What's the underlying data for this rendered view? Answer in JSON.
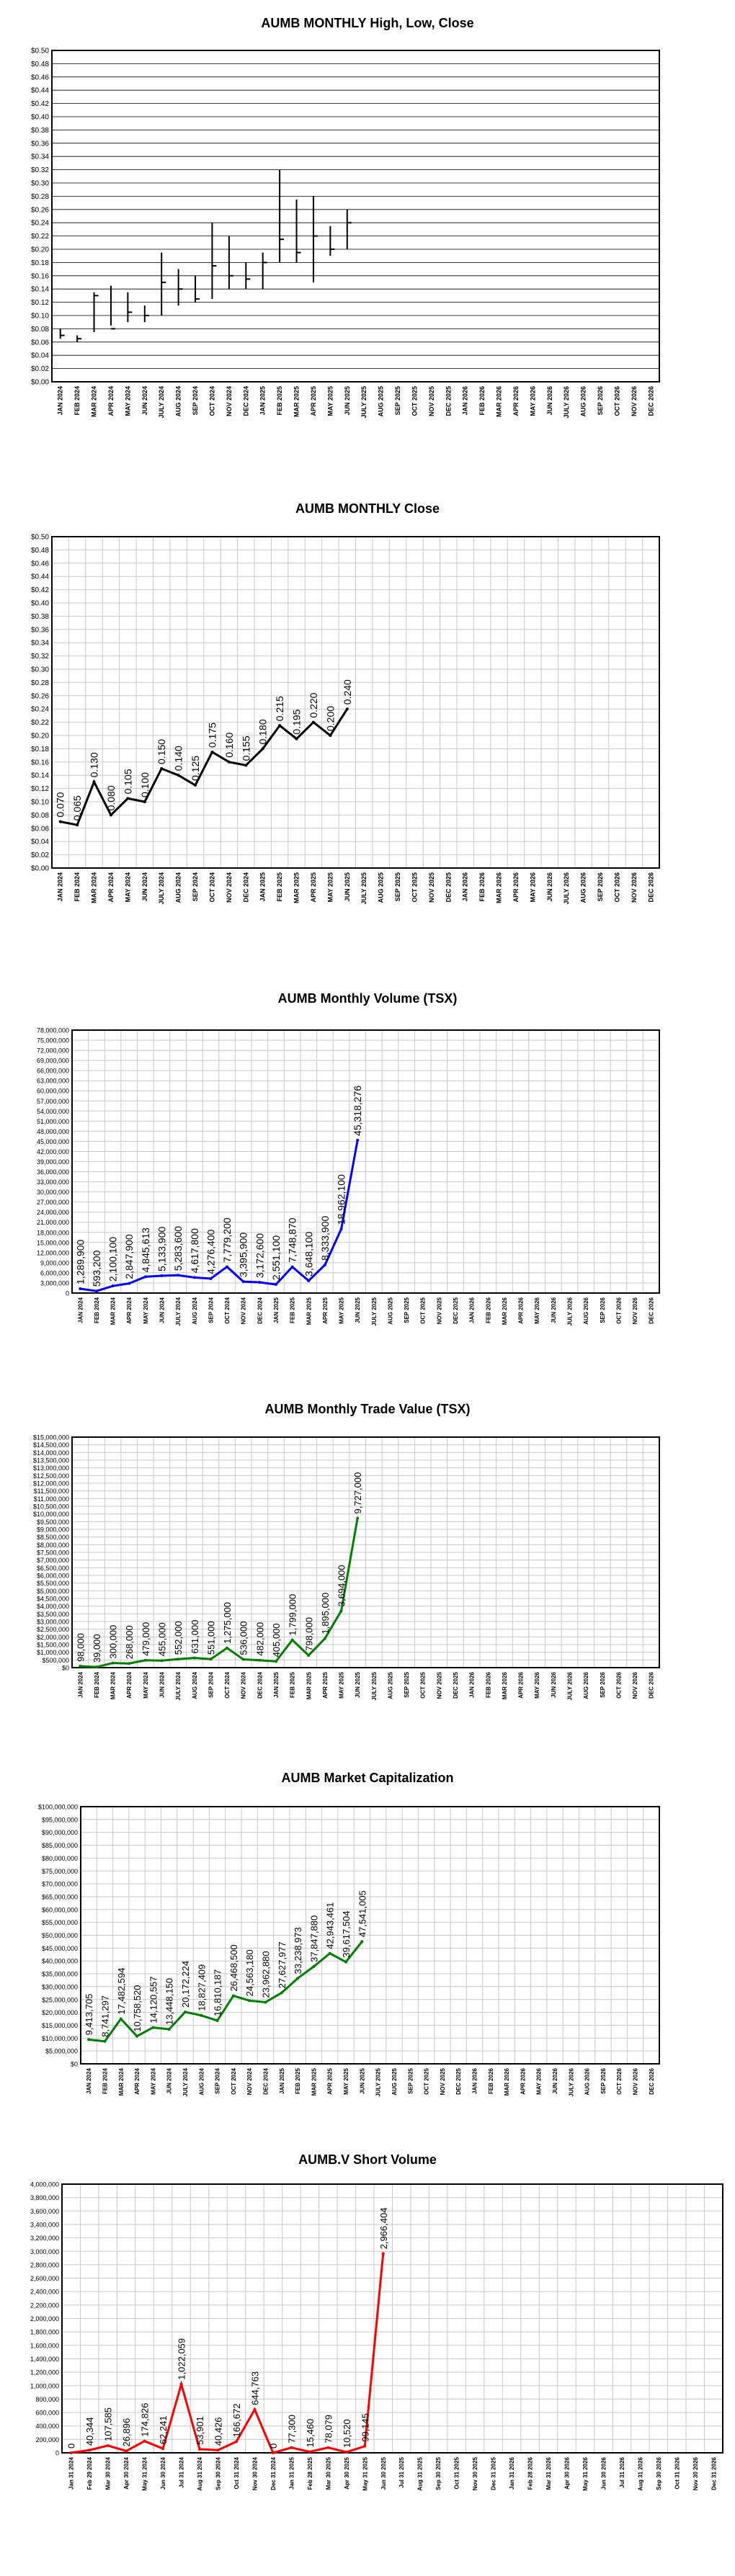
{
  "months": [
    "JAN 2024",
    "FEB 2024",
    "MAR 2024",
    "APR 2024",
    "MAY 2024",
    "JUN 2024",
    "JULY 2024",
    "AUG 2024",
    "SEP 2024",
    "OCT 2024",
    "NOV 2024",
    "DEC 2024",
    "JAN 2025",
    "FEB 2025",
    "MAR 2025",
    "APR 2025",
    "MAY 2025",
    "JUN 2025",
    "JULY 2025",
    "AUG 2025",
    "SEP 2025",
    "OCT 2025",
    "NOV 2025",
    "DEC 2025",
    "JAN 2026",
    "FEB 2026",
    "MAR 2026",
    "APR 2026",
    "MAY 2026",
    "JUN 2026",
    "JULY 2026",
    "AUG 2026",
    "SEP 2026",
    "OCT 2026",
    "NOV 2026",
    "DEC 2026"
  ],
  "months_close": [
    "JAN 2024",
    "FEB 2024",
    "MAR 2024",
    "APR 2024",
    "MAY 2024",
    "JUN 2024",
    "JULY 2024",
    "AUG 2024",
    "SEP 2024",
    "OCT 2024",
    "NOV 2024",
    "DEC 2024",
    "JAN 2025",
    "FEB 2025",
    "MAR 2025",
    "APR 2025",
    "MAY 2025",
    "JUN 2025",
    "JULY 2025",
    "AUG 2025",
    "SEP 2025",
    "OCT 2025",
    "NOV 2025",
    "DEC 2025",
    "JAN 2026",
    "FEB 2026",
    "MAR 2026",
    "APR 2026",
    "MAY 2026",
    "JUN 2026",
    "JULY 2026",
    "AUG 2026",
    "SEP 2026",
    "OCT 2026",
    "NOV 2026",
    "DEC 2026"
  ],
  "months_volume": [
    "JAN 2024",
    "FEB 2024",
    "MAR 2024",
    "APR 2024",
    "MAY 2024",
    "JUN 2024",
    "JULY 2024",
    "AUG 2024",
    "SEP 2024",
    "OCT 2024",
    "NOV 2024",
    "DEC 2024",
    "JAN 2025",
    "FEB 2025",
    "MAR 2025",
    "APR 2025",
    "MAY 2025",
    "JUN 2025",
    "JULY 2025",
    "AUG 2025",
    "SEP 2025",
    "OCT 2025",
    "NOV 2025",
    "DEC 2025",
    "JAN 2026",
    "FEB 2026",
    "MAR 2026",
    "APR 2026",
    "MAY 2026",
    "JUN 2026",
    "JULY 2026",
    "AUG 2026",
    "SEP 2026",
    "OCT 2026",
    "NOV 2026",
    "DEC 2026"
  ],
  "months_value": [
    "JAN 2024",
    "FEB 2024",
    "MAR 2024",
    "APR 2024",
    "MAY 2024",
    "JUN 2024",
    "JULY 2024",
    "AUG 2024",
    "SEP 2024",
    "OCT 2024",
    "NOV 2024",
    "DEC 2024",
    "JAN 2025",
    "FEB 2025",
    "MAR 2025",
    "APR 2025",
    "MAY 2025",
    "JUN 2025",
    "JULY 2025",
    "AUG 2025",
    "SEP 2025",
    "OCT 2025",
    "NOV 2025",
    "DEC 2025",
    "JAN 2026",
    "FEB 2026",
    "MAR 2026",
    "APR 2026",
    "MAY 2026",
    "JUN 2026",
    "JULY 2026",
    "AUG 2026",
    "SEP 2026",
    "OCT 2026",
    "NOV 2026",
    "DEC 2026"
  ],
  "months_cap": [
    "JAN 2024",
    "FEB 2024",
    "MAR 2024",
    "APR 2024",
    "MAY 2024",
    "JUN 2024",
    "JULY 2024",
    "AUG 2024",
    "SEP 2024",
    "OCT 2024",
    "NOV 2024",
    "DEC 2024",
    "JAN 2025",
    "FEB 2025",
    "MAR 2025",
    "APR 2025",
    "MAY 2025",
    "JUN 2025",
    "JULY 2025",
    "AUG 2025",
    "SEP 2025",
    "OCT 2025",
    "NOV 2025",
    "DEC 2025",
    "JAN 2026",
    "FEB 2026",
    "MAR 2026",
    "APR 2026",
    "MAY 2026",
    "JUN 2026",
    "JULY 2026",
    "AUG 2026",
    "SEP 2026",
    "OCT 2026",
    "NOV 2026",
    "DEC 2026"
  ],
  "short_dates": [
    "Jan 31 2024",
    "Feb 29 2024",
    "Mar 30 2024",
    "Apr 30 2024",
    "May 31 2024",
    "Jun 30 2024",
    "Jul 31 2024",
    "Aug 31 2024",
    "Sep 30 2024",
    "Oct 31 2024",
    "Nov 30 2024",
    "Dec 31 2024",
    "Jan 31 2025",
    "Feb 28 2025",
    "Mar 30 2025",
    "Apr 30 2025",
    "May 31 2025",
    "Jun 30 2025",
    "Jul 31 2025",
    "Aug 31 2025",
    "Sep 30 2025",
    "Oct 31 2025",
    "Nov 30 2025",
    "Dec 31 2025",
    "Jan 31 2026",
    "Feb 28 2026",
    "Mar 31 2026",
    "Apr 30 2026",
    "May 31 2026",
    "Jun 30 2026",
    "Jul 31 2026",
    "Aug 31 2026",
    "Sep 30 2026",
    "Oct 31 2026",
    "Nov 30 2026",
    "Dec 31 2026"
  ],
  "chart_data": [
    {
      "id": "hlc",
      "type": "hlc",
      "title": "AUMB MONTHLY High, Low, Close",
      "xlabel": "",
      "ylabel": "",
      "ylim": [
        0,
        0.5
      ],
      "ystep": 0.02,
      "ytick_decimals": 2,
      "ytick_prefix": "$",
      "grid": "horizontal",
      "high": [
        0.08,
        0.07,
        0.135,
        0.145,
        0.135,
        0.115,
        0.195,
        0.17,
        0.16,
        0.24,
        0.22,
        0.18,
        0.195,
        0.32,
        0.275,
        0.28,
        0.235,
        0.26
      ],
      "low": [
        0.065,
        0.06,
        0.075,
        0.085,
        0.09,
        0.09,
        0.1,
        0.115,
        0.12,
        0.125,
        0.14,
        0.14,
        0.14,
        0.18,
        0.18,
        0.15,
        0.19,
        0.2
      ],
      "close": [
        0.07,
        0.065,
        0.13,
        0.08,
        0.105,
        0.1,
        0.15,
        0.14,
        0.125,
        0.175,
        0.16,
        0.155,
        0.18,
        0.215,
        0.195,
        0.22,
        0.2,
        0.24
      ],
      "color": "#000000"
    },
    {
      "id": "close",
      "type": "line",
      "title": "AUMB MONTHLY Close",
      "xlabel": "",
      "ylabel": "",
      "ylim": [
        0,
        0.5
      ],
      "ystep": 0.02,
      "ytick_decimals": 2,
      "ytick_prefix": "$",
      "grid": "both",
      "values": [
        0.07,
        0.065,
        0.13,
        0.08,
        0.105,
        0.1,
        0.15,
        0.14,
        0.125,
        0.175,
        0.16,
        0.155,
        0.18,
        0.215,
        0.195,
        0.22,
        0.2,
        0.24
      ],
      "labels": [
        "0.070",
        "0.065",
        "0.130",
        "0.080",
        "0.105",
        "0.100",
        "0.150",
        "0.140",
        "0.125",
        "0.175",
        "0.160",
        "0.155",
        "0.180",
        "0.215",
        "0.195",
        "0.220",
        "0.200",
        "0.240"
      ],
      "color": "#000000"
    },
    {
      "id": "volume",
      "type": "line",
      "title": "AUMB Monthly Volume (TSX)",
      "xlabel": "",
      "ylabel": "",
      "ylim": [
        0,
        78000000
      ],
      "ystep": 3000000,
      "ytick_decimals": 0,
      "ytick_prefix": "",
      "grid": "both",
      "values": [
        1289900,
        593200,
        2100100,
        2847900,
        4845613,
        5133900,
        5283600,
        4617800,
        4276400,
        7779200,
        3395900,
        3172600,
        2551100,
        7748870,
        3648100,
        8333900,
        18962100,
        45318276
      ],
      "labels": [
        "1,289,900",
        "593,200",
        "2,100,100",
        "2,847,900",
        "4,845,613",
        "5,133,900",
        "5,283,600",
        "4,617,800",
        "4,276,400",
        "7,779,200",
        "3,395,900",
        "3,172,600",
        "2,551,100",
        "7,748,870",
        "3,648,100",
        "8,333,900",
        "18,962,100",
        "45,318,276"
      ],
      "color": "#0000ff"
    },
    {
      "id": "tradevalue",
      "type": "line",
      "title": "AUMB Monthly Trade Value  (TSX)",
      "xlabel": "",
      "ylabel": "",
      "ylim": [
        0,
        15000000
      ],
      "ystep": 500000,
      "ytick_decimals": 0,
      "ytick_prefix": "$",
      "grid": "both",
      "values": [
        98000,
        39000,
        300000,
        268000,
        479000,
        455000,
        552000,
        631000,
        551000,
        1275000,
        536000,
        482000,
        405000,
        1799000,
        798000,
        1895000,
        3694000,
        9727000
      ],
      "labels": [
        "98,000",
        "39,000",
        "300,000",
        "268,000",
        "479,000",
        "455,000",
        "552,000",
        "631,000",
        "551,000",
        "1,275,000",
        "536,000",
        "482,000",
        "405,000",
        "1,799,000",
        "798,000",
        "1,895,000",
        "3,694,000",
        "9,727,000"
      ],
      "color": "#008000"
    },
    {
      "id": "marketcap",
      "type": "line",
      "title": "AUMB Market Capitalization",
      "xlabel": "",
      "ylabel": "",
      "ylim": [
        0,
        100000000
      ],
      "ystep": 5000000,
      "ytick_decimals": 0,
      "ytick_prefix": "$",
      "grid": "both",
      "values": [
        9413705,
        8741297,
        17482594,
        10758520,
        14120557,
        13448150,
        20172224,
        18827409,
        16810187,
        26468500,
        24563180,
        23962880,
        27627977,
        33238973,
        37847880,
        42943461,
        39617504,
        47541005
      ],
      "labels": [
        "9,413,705",
        "8,741,297",
        "17,482,594",
        "10,758,520",
        "14,120,557",
        "13,448,150",
        "20,172,224",
        "18,827,409",
        "16,810,187",
        "26,468,500",
        "24,563,180",
        "23,962,880",
        "27,627,977",
        "33,238,973",
        "37,847,880",
        "42,943,461",
        "39,617,504",
        "47,541,005"
      ],
      "color": "#008000"
    },
    {
      "id": "shortvolume",
      "type": "line",
      "title": "AUMB.V Short Volume",
      "xlabel": "",
      "ylabel": "",
      "ylim": [
        0,
        4000000
      ],
      "ystep": 200000,
      "ytick_decimals": 0,
      "ytick_prefix": "",
      "grid": "both",
      "values": [
        0,
        40344,
        107585,
        26896,
        174826,
        62241,
        1022059,
        53901,
        40426,
        166672,
        644763,
        0,
        77300,
        15460,
        78079,
        10520,
        99145,
        2966404
      ],
      "labels": [
        "0",
        "40,344",
        "107,585",
        "26,896",
        "174,826",
        "62,241",
        "1,022,059",
        "53,901",
        "40,426",
        "166,672",
        "644,763",
        "0",
        "77,300",
        "15,460",
        "78,079",
        "10,520",
        "99,145",
        "2,966,404"
      ],
      "color": "#ff0000"
    }
  ]
}
